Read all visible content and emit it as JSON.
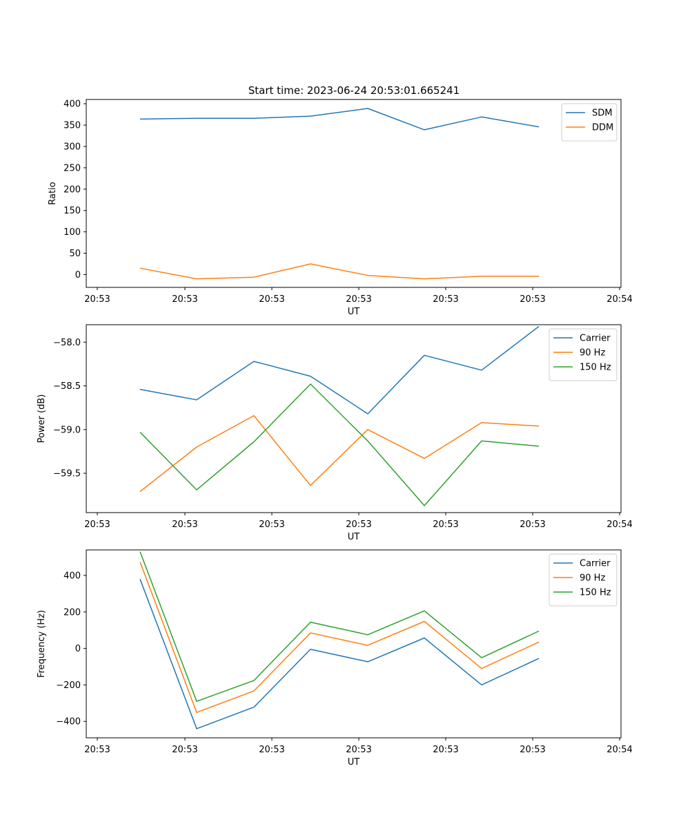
{
  "figure": {
    "title": "Start time: 2023-06-24 20:53:01.665241"
  },
  "colors": {
    "blue": "#1f77b4",
    "orange": "#ff7f0e",
    "green": "#2ca02c"
  },
  "chart_data": [
    {
      "type": "line",
      "title": "Start time: 2023-06-24 20:53:01.665241",
      "xlabel": "UT",
      "ylabel": "Ratio",
      "x_tick_labels": [
        "20:53",
        "20:53",
        "20:53",
        "20:53",
        "20:53",
        "20:53",
        "20:54"
      ],
      "ylim": [
        -30,
        410
      ],
      "yticks": [
        0,
        50,
        100,
        150,
        200,
        250,
        300,
        350,
        400
      ],
      "legend_position": "top-right",
      "series": [
        {
          "name": "SDM",
          "color": "#1f77b4",
          "values": [
            364,
            366,
            366,
            371,
            389,
            339,
            369,
            346
          ]
        },
        {
          "name": "DDM",
          "color": "#ff7f0e",
          "values": [
            15,
            -10,
            -6,
            25,
            -2,
            -10,
            -4,
            -4
          ]
        }
      ]
    },
    {
      "type": "line",
      "xlabel": "UT",
      "ylabel": "Power (dB)",
      "x_tick_labels": [
        "20:53",
        "20:53",
        "20:53",
        "20:53",
        "20:53",
        "20:53",
        "20:54"
      ],
      "ylim": [
        -59.95,
        -57.8
      ],
      "yticks": [
        -59.5,
        -59.0,
        -58.5,
        -58.0
      ],
      "ytick_labels": [
        "−59.5",
        "−59.0",
        "−58.5",
        "−58.0"
      ],
      "legend_position": "top-right",
      "series": [
        {
          "name": "Carrier",
          "color": "#1f77b4",
          "values": [
            -58.54,
            -58.66,
            -58.22,
            -58.39,
            -58.82,
            -58.15,
            -58.32,
            -57.82
          ]
        },
        {
          "name": "90 Hz",
          "color": "#ff7f0e",
          "values": [
            -59.71,
            -59.2,
            -58.84,
            -59.64,
            -59.0,
            -59.33,
            -58.92,
            -58.96
          ]
        },
        {
          "name": "150 Hz",
          "color": "#2ca02c",
          "values": [
            -59.03,
            -59.69,
            -59.14,
            -58.48,
            -59.13,
            -59.87,
            -59.13,
            -59.19
          ]
        }
      ]
    },
    {
      "type": "line",
      "xlabel": "UT",
      "ylabel": "Frequency (Hz)",
      "x_tick_labels": [
        "20:53",
        "20:53",
        "20:53",
        "20:53",
        "20:53",
        "20:53",
        "20:54"
      ],
      "ylim": [
        -490,
        540
      ],
      "yticks": [
        -400,
        -200,
        0,
        200,
        400
      ],
      "ytick_labels": [
        "−400",
        "−200",
        "0",
        "200",
        "400"
      ],
      "legend_position": "top-right",
      "series": [
        {
          "name": "Carrier",
          "color": "#1f77b4",
          "values": [
            380,
            -440,
            -322,
            -5,
            -73,
            57,
            -200,
            -55
          ]
        },
        {
          "name": "90 Hz",
          "color": "#ff7f0e",
          "values": [
            474,
            -351,
            -233,
            85,
            17,
            148,
            -110,
            35
          ]
        },
        {
          "name": "150 Hz",
          "color": "#2ca02c",
          "values": [
            530,
            -290,
            -176,
            144,
            75,
            206,
            -51,
            95
          ]
        }
      ]
    }
  ]
}
